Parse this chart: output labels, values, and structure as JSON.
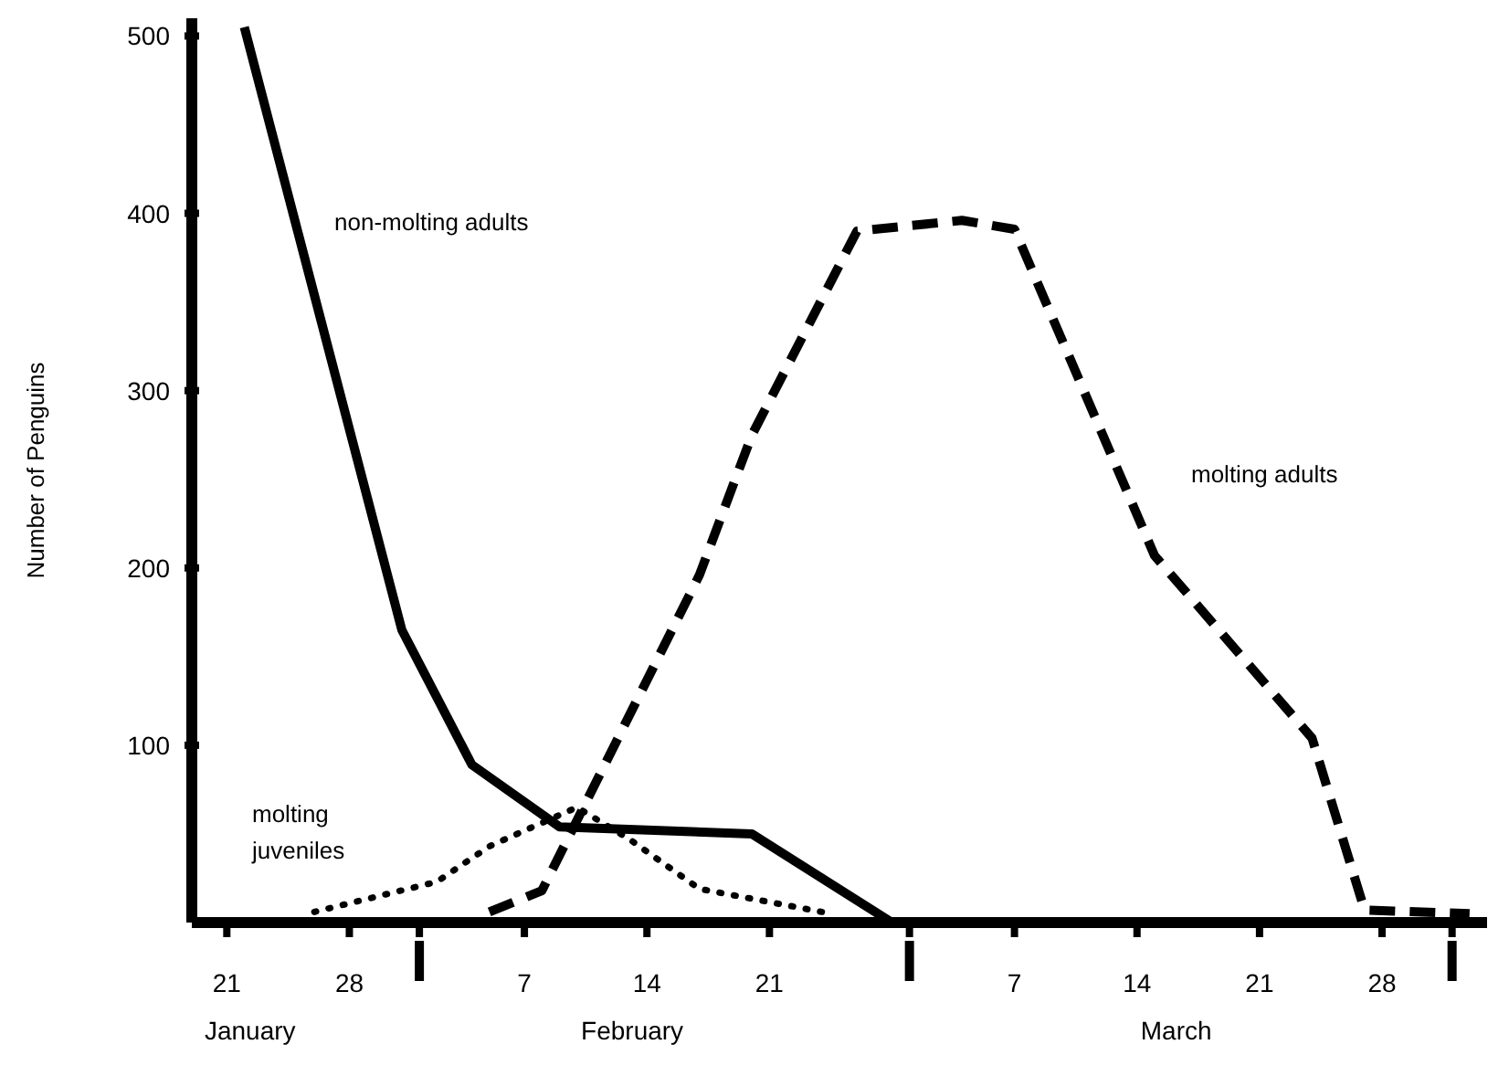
{
  "chart_data": {
    "type": "line",
    "ylabel": "Number of Penguins",
    "xlim": [
      "--01-19",
      "--04-03"
    ],
    "xticks": [
      {
        "value": "--01-21",
        "label": "21"
      },
      {
        "value": "--01-28",
        "label": "28"
      },
      {
        "value": "--02-01",
        "label": null
      },
      {
        "value": "--02-07",
        "label": "7"
      },
      {
        "value": "--02-14",
        "label": "14"
      },
      {
        "value": "--02-21",
        "label": "21"
      },
      {
        "value": "--03-01",
        "label": null
      },
      {
        "value": "--03-07",
        "label": "7"
      },
      {
        "value": "--03-14",
        "label": "14"
      },
      {
        "value": "--03-21",
        "label": "21"
      },
      {
        "value": "--03-28",
        "label": "28"
      },
      {
        "value": "--04-01",
        "label": null
      }
    ],
    "ylim": [
      0,
      510
    ],
    "yticks": [
      100,
      200,
      300,
      400,
      500
    ],
    "grid": false,
    "marker": "none",
    "annotations": [
      "January",
      "February",
      "March"
    ],
    "series": [
      {
        "name": "non-molting adults",
        "color": "#000000",
        "line_style": "solid",
        "x": [
          "--01-22",
          "--01-31",
          "--02-04",
          "--02-09",
          "--02-20",
          "--02-28"
        ],
        "values": [
          505,
          165,
          89,
          54,
          50,
          0
        ]
      },
      {
        "name": "molting adults",
        "color": "#000000",
        "line_style": "dashed",
        "x": [
          "--02-05",
          "--02-08",
          "--02-17",
          "--02-20",
          "--02-26",
          "--03-04",
          "--03-07",
          "--03-15",
          "--03-24",
          "--03-27",
          "--04-02"
        ],
        "values": [
          6,
          18,
          196,
          275,
          390,
          396,
          391,
          207,
          104,
          7,
          5
        ]
      },
      {
        "name": "molting juveniles",
        "color": "#000000",
        "line_style": "dotted",
        "x": [
          "--01-26",
          "--02-02",
          "--02-05",
          "--02-10",
          "--02-13",
          "--02-17",
          "--02-24"
        ],
        "values": [
          6,
          23,
          43,
          65,
          47,
          19,
          6
        ]
      }
    ]
  }
}
